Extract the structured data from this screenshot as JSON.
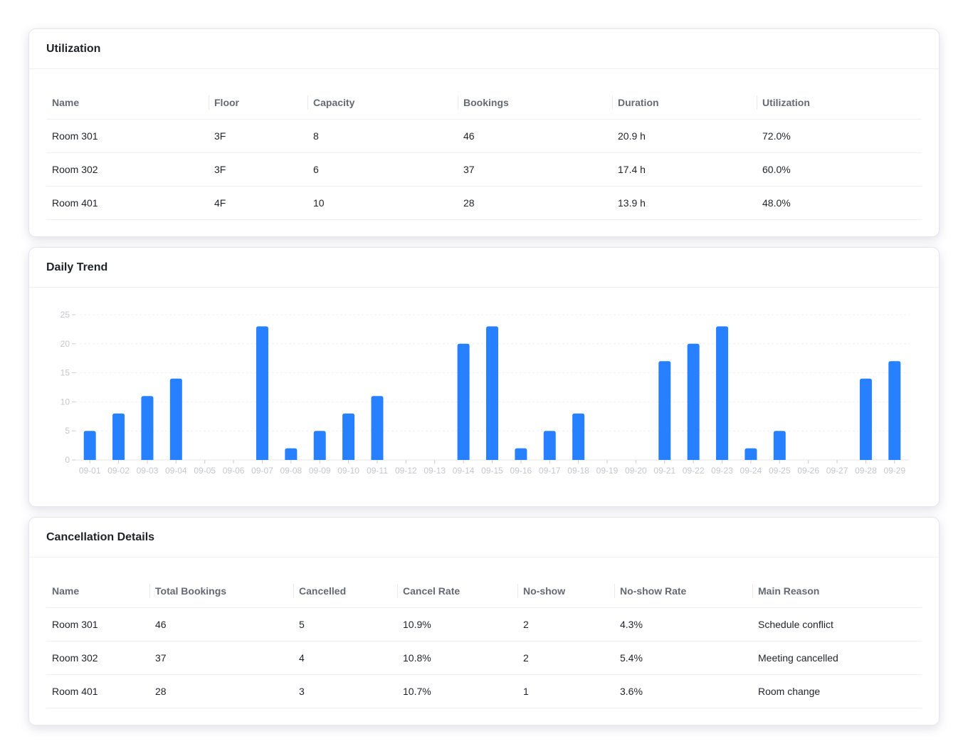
{
  "utilization": {
    "title": "Utilization",
    "columns": [
      "Name",
      "Floor",
      "Capacity",
      "Bookings",
      "Duration",
      "Utilization"
    ],
    "rows": [
      [
        "Room 301",
        "3F",
        "8",
        "46",
        "20.9 h",
        "72.0%"
      ],
      [
        "Room 302",
        "3F",
        "6",
        "37",
        "17.4 h",
        "60.0%"
      ],
      [
        "Room 401",
        "4F",
        "10",
        "28",
        "13.9 h",
        "48.0%"
      ]
    ]
  },
  "trend": {
    "title": "Daily Trend"
  },
  "chart_data": {
    "type": "bar",
    "title": "",
    "xlabel": "",
    "ylabel": "",
    "ylim": [
      0,
      25
    ],
    "yticks": [
      0,
      5,
      10,
      15,
      20,
      25
    ],
    "grid": true,
    "bar_color": "#2680ff",
    "categories": [
      "09-01",
      "09-02",
      "09-03",
      "09-04",
      "09-05",
      "09-06",
      "09-07",
      "09-08",
      "09-09",
      "09-10",
      "09-11",
      "09-12",
      "09-13",
      "09-14",
      "09-15",
      "09-16",
      "09-17",
      "09-18",
      "09-19",
      "09-20",
      "09-21",
      "09-22",
      "09-23",
      "09-24",
      "09-25",
      "09-26",
      "09-27",
      "09-28",
      "09-29"
    ],
    "values": [
      5,
      8,
      11,
      14,
      0,
      0,
      23,
      2,
      5,
      8,
      11,
      0,
      0,
      20,
      23,
      2,
      5,
      8,
      0,
      0,
      17,
      20,
      23,
      2,
      5,
      0,
      0,
      14,
      17
    ]
  },
  "cancellation": {
    "title": "Cancellation Details",
    "columns": [
      "Name",
      "Total Bookings",
      "Cancelled",
      "Cancel Rate",
      "No-show",
      "No-show Rate",
      "Main Reason"
    ],
    "rows": [
      [
        "Room 301",
        "46",
        "5",
        "10.9%",
        "2",
        "4.3%",
        "Schedule conflict"
      ],
      [
        "Room 302",
        "37",
        "4",
        "10.8%",
        "2",
        "5.4%",
        "Meeting cancelled"
      ],
      [
        "Room 401",
        "28",
        "3",
        "10.7%",
        "1",
        "3.6%",
        "Room change"
      ]
    ]
  }
}
